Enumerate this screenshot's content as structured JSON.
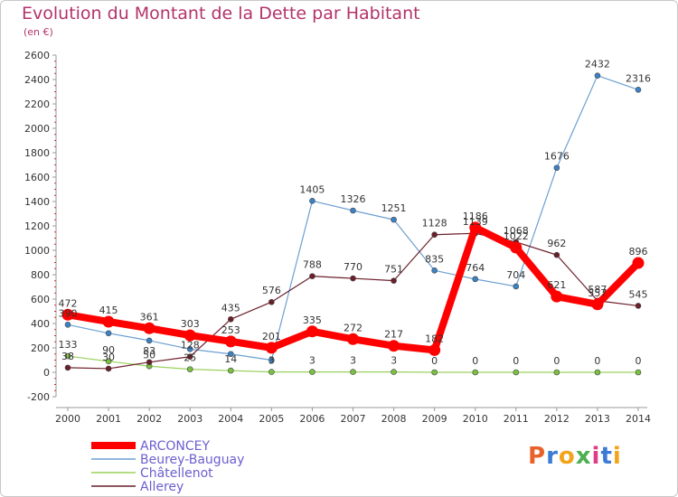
{
  "title": "Evolution du Montant de la Dette par Habitant",
  "subtitle": "(en €)",
  "logo": {
    "text": "Proxiti",
    "colors": [
      "#e8632b",
      "#3a7bd5",
      "#f2a51a",
      "#4caf50",
      "#e03c8a",
      "#3a7bd5",
      "#f2a51a"
    ]
  },
  "chart_data": {
    "type": "line",
    "x": [
      "2000",
      "2001",
      "2002",
      "2003",
      "2004",
      "2005",
      "2006",
      "2007",
      "2008",
      "2009",
      "2010",
      "2011",
      "2012",
      "2013",
      "2014"
    ],
    "ylim": [
      -200,
      2600
    ],
    "yticks": [
      -200,
      0,
      200,
      400,
      600,
      800,
      1000,
      1200,
      1400,
      1600,
      1800,
      2000,
      2200,
      2400,
      2600
    ],
    "grid": false,
    "legend": "bottom-left",
    "series": [
      {
        "name": "Beurey-Bauguay",
        "color": "#6c9fd2",
        "marker": "#3b82c4",
        "values": [
          390,
          320,
          260,
          190,
          150,
          100,
          1405,
          1326,
          1251,
          835,
          764,
          704,
          1676,
          2432,
          2316
        ],
        "labels": [
          "390",
          "",
          "",
          "",
          "",
          "",
          "1405",
          "1326",
          "1251",
          "835",
          "764",
          "704",
          "1676",
          "2432",
          "2316"
        ]
      },
      {
        "name": "Châtellenot",
        "color": "#9bd15c",
        "marker": "#7ac143",
        "values": [
          133,
          90,
          50,
          25,
          14,
          3,
          3,
          3,
          3,
          0,
          0,
          0,
          0,
          0,
          0
        ],
        "labels": [
          "133",
          "90",
          "50",
          "25",
          "14",
          "3",
          "3",
          "3",
          "3",
          "0",
          "0",
          "0",
          "0",
          "0",
          "0"
        ]
      },
      {
        "name": "Allerey",
        "color": "#6b1f2a",
        "marker": "#6b1f2a",
        "values": [
          38,
          30,
          83,
          128,
          435,
          576,
          788,
          770,
          751,
          1128,
          1139,
          1068,
          962,
          587,
          545
        ],
        "labels": [
          "38",
          "30",
          "83",
          "128",
          "435",
          "576",
          "788",
          "770",
          "751",
          "1128",
          "1139",
          "1068",
          "962",
          "587",
          "545"
        ]
      },
      {
        "name": "ARCONCEY",
        "color": "#ff0000",
        "marker": "#ff0000",
        "values": [
          472,
          415,
          361,
          303,
          253,
          201,
          335,
          272,
          217,
          182,
          1186,
          1022,
          621,
          557,
          896
        ],
        "labels": [
          "472",
          "415",
          "361",
          "303",
          "253",
          "201",
          "335",
          "272",
          "217",
          "182",
          "1186",
          "1022",
          "621",
          "557",
          "896"
        ]
      }
    ]
  }
}
